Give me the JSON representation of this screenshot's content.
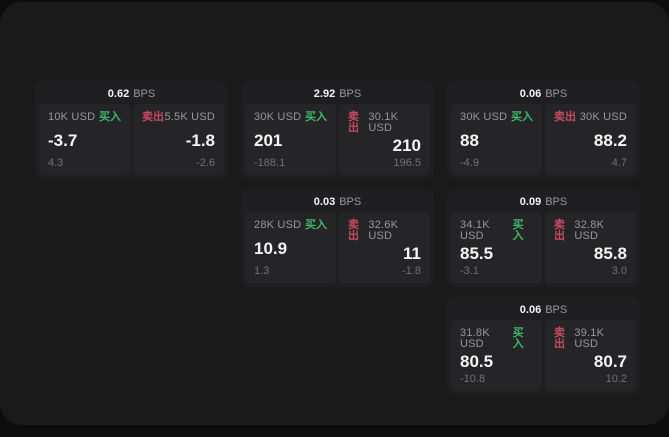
{
  "theme": {
    "background": "#0d0d0e",
    "panel": "#1a1a1b",
    "card": "#1f1f21",
    "tile": "#252527",
    "accent_buy": "#3eb86a",
    "accent_sell": "#c84a61",
    "text_primary": "#f5f5f5",
    "text_secondary": "#98989b",
    "text_muted": "#717174"
  },
  "labels": {
    "bps_unit": "BPS",
    "buy": "买入",
    "sell": "卖出"
  },
  "cards": [
    {
      "bps": "0.62",
      "buy": {
        "amount": "10K USD",
        "value": "-3.7",
        "delta": "4.3"
      },
      "sell": {
        "amount": "5.5K USD",
        "value": "-1.8",
        "delta": "-2.6"
      }
    },
    {
      "bps": "2.92",
      "buy": {
        "amount": "30K USD",
        "value": "201",
        "delta": "-188.1"
      },
      "sell": {
        "amount": "30.1K USD",
        "value": "210",
        "delta": "196.5"
      }
    },
    {
      "bps": "0.06",
      "buy": {
        "amount": "30K USD",
        "value": "88",
        "delta": "-4.9"
      },
      "sell": {
        "amount": "30K USD",
        "value": "88.2",
        "delta": "4.7"
      }
    },
    {
      "bps": "0.03",
      "buy": {
        "amount": "28K USD",
        "value": "10.9",
        "delta": "1.3"
      },
      "sell": {
        "amount": "32.6K USD",
        "value": "11",
        "delta": "-1.8"
      }
    },
    {
      "bps": "0.09",
      "buy": {
        "amount": "34.1K USD",
        "value": "85.5",
        "delta": "-3.1"
      },
      "sell": {
        "amount": "32.8K USD",
        "value": "85.8",
        "delta": "3.0"
      }
    },
    {
      "bps": "0.06",
      "buy": {
        "amount": "31.8K USD",
        "value": "80.5",
        "delta": "-10.8"
      },
      "sell": {
        "amount": "39.1K USD",
        "value": "80.7",
        "delta": "10.2"
      }
    }
  ]
}
